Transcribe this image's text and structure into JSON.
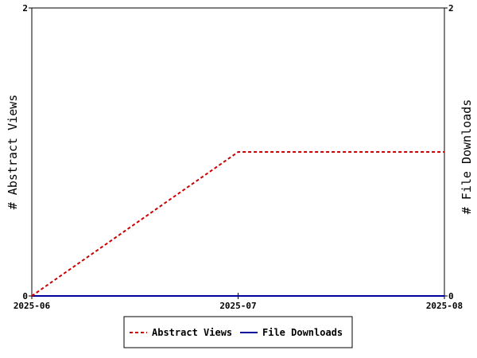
{
  "chart_data": {
    "type": "line",
    "title": "",
    "x": [
      "2025-06",
      "2025-07",
      "2025-08"
    ],
    "xlabel": "",
    "ylabel_left": "# Abstract Views",
    "ylabel_right": "# File Downloads",
    "ylim_left": [
      0,
      2
    ],
    "ylim_right": [
      0,
      2
    ],
    "left_ticks": [
      "0",
      "2"
    ],
    "right_ticks": [
      "0",
      "2"
    ],
    "grid": false,
    "legend_position": "bottom",
    "series": [
      {
        "name": "Abstract Views",
        "axis": "left",
        "values": [
          0,
          1,
          1
        ],
        "color": "#cc0000",
        "style": "dashed"
      },
      {
        "name": "File Downloads",
        "axis": "right",
        "values": [
          0,
          0,
          0
        ],
        "color": "#00009c",
        "style": "solid"
      }
    ]
  }
}
